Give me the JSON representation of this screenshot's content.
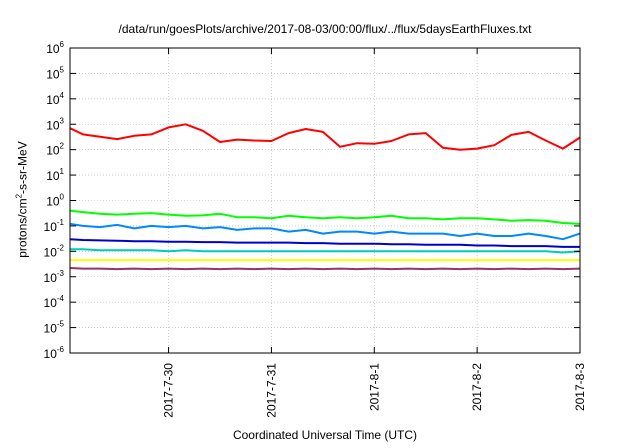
{
  "chart_data": {
    "type": "line",
    "title": "/data/run/goesPlots/archive/2017-08-03/00:00/flux/../flux/5daysEarthFluxes.txt",
    "xlabel": "Coordinated Universal Time (UTC)",
    "ylabel": {
      "prefix": "protons/cm",
      "sup": "2",
      "suffix": "-s-sr-MeV"
    },
    "yscale": "log",
    "ylim": [
      1e-06,
      1000000.0
    ],
    "xlim": [
      "2017-07-29T01:00",
      "2017-08-03T00:00"
    ],
    "grid": true,
    "x_ticks": [
      {
        "x": "2017-07-30T00:00",
        "label": "2017-7-30"
      },
      {
        "x": "2017-07-31T00:00",
        "label": "2017-7-31"
      },
      {
        "x": "2017-08-01T00:00",
        "label": "2017-8-1"
      },
      {
        "x": "2017-08-02T00:00",
        "label": "2017-8-2"
      },
      {
        "x": "2017-08-03T00:00",
        "label": "2017-8-3"
      }
    ],
    "y_ticks": [
      {
        "exp": "-6",
        "value": 1e-06
      },
      {
        "exp": "-5",
        "value": 1e-05
      },
      {
        "exp": "-4",
        "value": 0.0001
      },
      {
        "exp": "-3",
        "value": 0.001
      },
      {
        "exp": "-2",
        "value": 0.01
      },
      {
        "exp": "-1",
        "value": 0.1
      },
      {
        "exp": "0",
        "value": 1
      },
      {
        "exp": "1",
        "value": 10
      },
      {
        "exp": "2",
        "value": 100
      },
      {
        "exp": "3",
        "value": 1000
      },
      {
        "exp": "4",
        "value": 10000
      },
      {
        "exp": "5",
        "value": 100000
      },
      {
        "exp": "6",
        "value": 1000000
      }
    ],
    "x": [
      "2017-07-29T01:00",
      "2017-07-29T04:00",
      "2017-07-29T08:00",
      "2017-07-29T12:00",
      "2017-07-29T16:00",
      "2017-07-29T20:00",
      "2017-07-30T00:00",
      "2017-07-30T04:00",
      "2017-07-30T08:00",
      "2017-07-30T12:00",
      "2017-07-30T16:00",
      "2017-07-30T20:00",
      "2017-07-31T00:00",
      "2017-07-31T04:00",
      "2017-07-31T08:00",
      "2017-07-31T12:00",
      "2017-07-31T16:00",
      "2017-07-31T20:00",
      "2017-08-01T00:00",
      "2017-08-01T04:00",
      "2017-08-01T08:00",
      "2017-08-01T12:00",
      "2017-08-01T16:00",
      "2017-08-01T20:00",
      "2017-08-02T00:00",
      "2017-08-02T04:00",
      "2017-08-02T08:00",
      "2017-08-02T12:00",
      "2017-08-02T16:00",
      "2017-08-02T20:00",
      "2017-08-03T00:00"
    ],
    "series": [
      {
        "color": "#ff0000",
        "values": [
          700,
          400,
          320,
          260,
          350,
          400,
          750,
          1000,
          550,
          200,
          250,
          230,
          220,
          450,
          650,
          500,
          130,
          180,
          170,
          220,
          400,
          450,
          120,
          100,
          110,
          150,
          380,
          500,
          230,
          110,
          300
        ]
      },
      {
        "color": "#00ff00",
        "values": [
          0.4,
          0.35,
          0.3,
          0.28,
          0.3,
          0.32,
          0.28,
          0.25,
          0.26,
          0.3,
          0.22,
          0.22,
          0.2,
          0.25,
          0.22,
          0.2,
          0.22,
          0.2,
          0.22,
          0.25,
          0.2,
          0.2,
          0.18,
          0.2,
          0.2,
          0.18,
          0.16,
          0.17,
          0.16,
          0.13,
          0.12
        ]
      },
      {
        "color": "#0088ff",
        "values": [
          0.12,
          0.1,
          0.09,
          0.11,
          0.08,
          0.1,
          0.09,
          0.1,
          0.08,
          0.09,
          0.07,
          0.08,
          0.08,
          0.06,
          0.07,
          0.05,
          0.06,
          0.06,
          0.05,
          0.06,
          0.05,
          0.05,
          0.05,
          0.04,
          0.05,
          0.04,
          0.04,
          0.05,
          0.04,
          0.03,
          0.05
        ]
      },
      {
        "color": "#0000cc",
        "values": [
          0.03,
          0.028,
          0.027,
          0.026,
          0.025,
          0.025,
          0.024,
          0.024,
          0.023,
          0.023,
          0.022,
          0.022,
          0.022,
          0.022,
          0.021,
          0.021,
          0.02,
          0.02,
          0.02,
          0.019,
          0.019,
          0.018,
          0.018,
          0.018,
          0.017,
          0.017,
          0.016,
          0.016,
          0.016,
          0.015,
          0.015
        ]
      },
      {
        "color": "#00ccbb",
        "values": [
          0.012,
          0.012,
          0.011,
          0.011,
          0.011,
          0.011,
          0.01,
          0.011,
          0.01,
          0.01,
          0.01,
          0.01,
          0.01,
          0.01,
          0.01,
          0.01,
          0.01,
          0.01,
          0.01,
          0.01,
          0.01,
          0.01,
          0.01,
          0.01,
          0.01,
          0.01,
          0.01,
          0.01,
          0.01,
          0.009,
          0.01
        ]
      },
      {
        "color": "#ffff00",
        "values": [
          0.0045,
          0.0045,
          0.0045,
          0.0045,
          0.0045,
          0.0045,
          0.0045,
          0.0045,
          0.0045,
          0.0045,
          0.0045,
          0.0045,
          0.0045,
          0.0045,
          0.0045,
          0.0045,
          0.0045,
          0.0045,
          0.0045,
          0.0045,
          0.0045,
          0.0045,
          0.0045,
          0.0045,
          0.0045,
          0.0045,
          0.0045,
          0.0045,
          0.0045,
          0.0045,
          0.0045
        ]
      },
      {
        "color": "#993366",
        "values": [
          0.0022,
          0.0021,
          0.0021,
          0.002,
          0.0021,
          0.002,
          0.0021,
          0.002,
          0.0021,
          0.002,
          0.0021,
          0.002,
          0.0021,
          0.002,
          0.0021,
          0.002,
          0.0021,
          0.002,
          0.0021,
          0.002,
          0.0021,
          0.002,
          0.0021,
          0.002,
          0.0021,
          0.002,
          0.0021,
          0.002,
          0.0021,
          0.002,
          0.0021
        ]
      }
    ]
  }
}
